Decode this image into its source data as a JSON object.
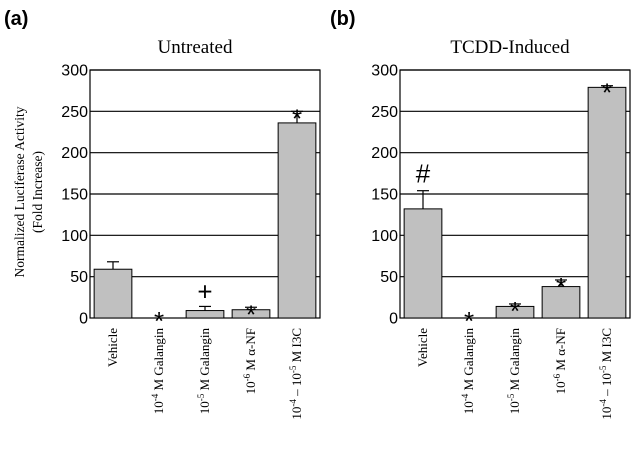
{
  "y_label_line1": "Normalized Luciferase Activity",
  "y_label_line2": "(Fold Increase)",
  "chart_data": [
    {
      "type": "bar",
      "panel": "(a)",
      "title": "Untreated",
      "categories": [
        {
          "pre": "",
          "sup1": "",
          "mid": "",
          "sup2": "",
          "post": "Vehicle"
        },
        {
          "pre": "10",
          "sup1": "-4",
          "mid": "",
          "sup2": "",
          "post": " M Galangin"
        },
        {
          "pre": "10",
          "sup1": "-5",
          "mid": "",
          "sup2": "",
          "post": " M Galangin"
        },
        {
          "pre": "10",
          "sup1": "-6",
          "mid": "",
          "sup2": "",
          "post": " M α-NF"
        },
        {
          "pre": "10",
          "sup1": "-4",
          "mid": " – 10",
          "sup2": "-5",
          "post": " M I3C"
        }
      ],
      "values": [
        59,
        0,
        9,
        10,
        236
      ],
      "errors": [
        9,
        0,
        5,
        3,
        14
      ],
      "annotations": [
        "",
        "*",
        "+",
        "*",
        "*"
      ],
      "ylim": [
        0,
        300
      ],
      "yticks": [
        "0",
        "50",
        "100",
        "150",
        "200",
        "250",
        "300"
      ],
      "grid": true,
      "bar_color": "#c0c0c0"
    },
    {
      "type": "bar",
      "panel": "(b)",
      "title": "TCDD-Induced",
      "categories": [
        {
          "pre": "",
          "sup1": "",
          "mid": "",
          "sup2": "",
          "post": "Vehicle"
        },
        {
          "pre": "10",
          "sup1": "-4",
          "mid": "",
          "sup2": "",
          "post": " M Galangin"
        },
        {
          "pre": "10",
          "sup1": "-5",
          "mid": "",
          "sup2": "",
          "post": " M Galangin"
        },
        {
          "pre": "10",
          "sup1": "-6",
          "mid": "",
          "sup2": "",
          "post": " M α-NF"
        },
        {
          "pre": "10",
          "sup1": "-4",
          "mid": " – 10",
          "sup2": "-5",
          "post": " M I3C"
        }
      ],
      "values": [
        132,
        0,
        14,
        38,
        279
      ],
      "errors": [
        22,
        0,
        3,
        8,
        2
      ],
      "annotations": [
        "#",
        "*",
        "*",
        "*",
        "*"
      ],
      "ylim": [
        0,
        300
      ],
      "yticks": [
        "0",
        "50",
        "100",
        "150",
        "200",
        "250",
        "300"
      ],
      "grid": true,
      "bar_color": "#c0c0c0"
    }
  ]
}
